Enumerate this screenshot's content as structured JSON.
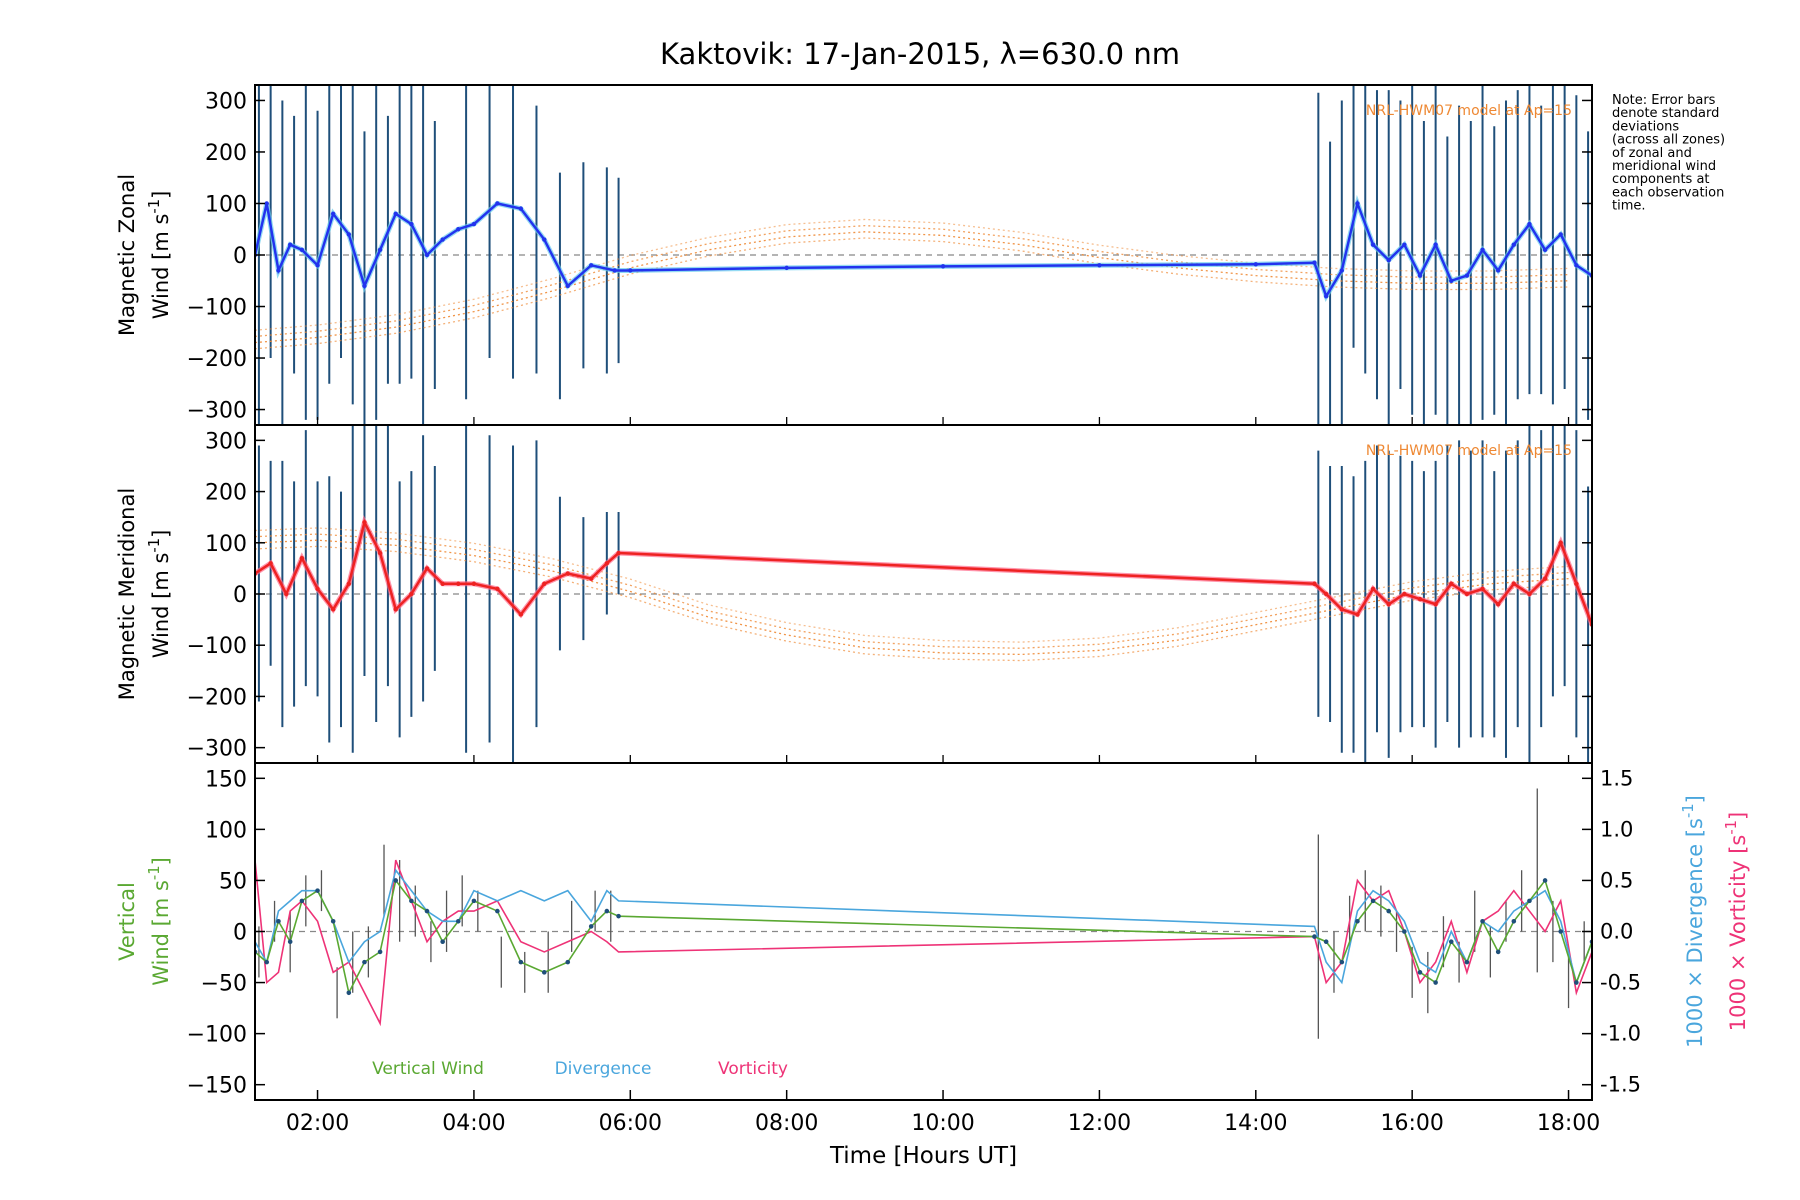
{
  "title": "Kaktovik: 17-Jan-2015, λ=630.0 nm",
  "note_lines": [
    "Note: Error bars",
    "denote standard",
    "deviations",
    "(across all zones)",
    "of zonal and",
    "meridional wind",
    "components at",
    "each observation",
    "time."
  ],
  "colors": {
    "zonal": "#2233ee",
    "zonal_light": "#66ccee",
    "meridional": "#ee2222",
    "meridional_light": "#ff6688",
    "model": "#ee8833",
    "vertical": "#5aa832",
    "divergence": "#4aa6dd",
    "vorticity": "#ee3377",
    "errorbar": "#1f4f7a",
    "axis": "#000000"
  },
  "chart_data": [
    {
      "type": "line",
      "panel": "zonal",
      "ylabel_lines": [
        "Magnetic Zonal",
        "Wind"
      ],
      "ylabel_unit": "[m s",
      "ylabel_unit_sup": "-1",
      "ylabel_unit_end": "]",
      "ylim": [
        -330,
        330
      ],
      "yticks": [
        -300,
        -200,
        -100,
        0,
        100,
        200,
        300
      ],
      "model_label": "NRL-HWM07 model at Ap=15",
      "series": [
        {
          "role": "observed",
          "x": [
            1.2,
            1.35,
            1.5,
            1.65,
            1.8,
            2.0,
            2.2,
            2.4,
            2.6,
            2.8,
            3.0,
            3.2,
            3.4,
            3.6,
            3.8,
            4.0,
            4.3,
            4.6,
            4.9,
            5.2,
            5.5,
            5.8,
            6.0,
            8.0,
            10.0,
            12.0,
            14.0,
            14.75,
            14.9,
            15.1,
            15.3,
            15.5,
            15.7,
            15.9,
            16.1,
            16.3,
            16.5,
            16.7,
            16.9,
            17.1,
            17.3,
            17.5,
            17.7,
            17.9,
            18.1,
            18.3
          ],
          "y": [
            0,
            100,
            -30,
            20,
            10,
            -20,
            80,
            40,
            -60,
            10,
            80,
            60,
            0,
            30,
            50,
            60,
            100,
            90,
            30,
            -60,
            -20,
            -30,
            -30,
            -25,
            -22,
            -20,
            -18,
            -15,
            -80,
            -30,
            100,
            20,
            -10,
            20,
            -40,
            20,
            -50,
            -40,
            10,
            -30,
            20,
            60,
            10,
            40,
            -20,
            -40
          ]
        },
        {
          "role": "model",
          "x": [
            1.2,
            2.0,
            3.0,
            4.0,
            5.0,
            6.0,
            7.0,
            8.0,
            9.0,
            10.0,
            11.0,
            12.0,
            13.0,
            14.0,
            15.0,
            16.0,
            17.0,
            18.0
          ],
          "y": [
            -170,
            -160,
            -140,
            -110,
            -70,
            -25,
            10,
            35,
            45,
            38,
            20,
            -5,
            -25,
            -40,
            -50,
            -55,
            -55,
            -50
          ]
        }
      ],
      "errorbars": {
        "x": [
          1.25,
          1.4,
          1.55,
          1.7,
          1.85,
          2.0,
          2.15,
          2.3,
          2.45,
          2.6,
          2.75,
          2.9,
          3.05,
          3.2,
          3.35,
          3.5,
          3.9,
          4.2,
          4.5,
          4.8,
          5.1,
          5.4,
          5.7,
          5.85,
          14.8,
          14.95,
          15.1,
          15.25,
          15.4,
          15.55,
          15.7,
          15.85,
          16.0,
          16.15,
          16.3,
          16.45,
          16.6,
          16.75,
          16.9,
          17.05,
          17.2,
          17.35,
          17.5,
          17.65,
          17.8,
          17.95,
          18.1,
          18.25
        ],
        "half": [
          330,
          300,
          330,
          250,
          330,
          300,
          330,
          280,
          330,
          300,
          330,
          260,
          330,
          300,
          330,
          260,
          330,
          300,
          330,
          260,
          220,
          200,
          200,
          180,
          330,
          300,
          330,
          280,
          330,
          300,
          330,
          280,
          330,
          300,
          330,
          280,
          330,
          300,
          330,
          280,
          330,
          300,
          330,
          280,
          330,
          300,
          330,
          280
        ]
      }
    },
    {
      "type": "line",
      "panel": "meridional",
      "ylabel_lines": [
        "Magnetic Meridional",
        "Wind"
      ],
      "ylabel_unit": "[m s",
      "ylabel_unit_sup": "-1",
      "ylabel_unit_end": "]",
      "ylim": [
        -330,
        330
      ],
      "yticks": [
        -300,
        -200,
        -100,
        0,
        100,
        200,
        300
      ],
      "model_label": "NRL-HWM07 model at Ap=15",
      "series": [
        {
          "role": "observed",
          "x": [
            1.2,
            1.4,
            1.6,
            1.8,
            2.0,
            2.2,
            2.4,
            2.6,
            2.8,
            3.0,
            3.2,
            3.4,
            3.6,
            3.8,
            4.0,
            4.3,
            4.6,
            4.9,
            5.2,
            5.5,
            5.7,
            5.85,
            14.75,
            14.9,
            15.1,
            15.3,
            15.5,
            15.7,
            15.9,
            16.1,
            16.3,
            16.5,
            16.7,
            16.9,
            17.1,
            17.3,
            17.5,
            17.7,
            17.9,
            18.1,
            18.3
          ],
          "y": [
            40,
            60,
            0,
            70,
            10,
            -30,
            20,
            140,
            80,
            -30,
            0,
            50,
            20,
            20,
            20,
            10,
            -40,
            20,
            40,
            30,
            60,
            80,
            20,
            0,
            -30,
            -40,
            10,
            -20,
            0,
            -10,
            -20,
            20,
            0,
            10,
            -20,
            20,
            0,
            30,
            100,
            20,
            -60
          ]
        },
        {
          "role": "model",
          "x": [
            1.2,
            2.0,
            3.0,
            4.0,
            5.0,
            6.0,
            7.0,
            8.0,
            9.0,
            10.0,
            11.0,
            12.0,
            13.0,
            14.0,
            15.0,
            16.0,
            17.0,
            18.0
          ],
          "y": [
            100,
            105,
            95,
            75,
            45,
            5,
            -45,
            -80,
            -105,
            -115,
            -118,
            -110,
            -90,
            -60,
            -30,
            0,
            20,
            30
          ]
        }
      ],
      "errorbars": {
        "x": [
          1.25,
          1.4,
          1.55,
          1.7,
          1.85,
          2.0,
          2.15,
          2.3,
          2.45,
          2.6,
          2.75,
          2.9,
          3.05,
          3.2,
          3.35,
          3.5,
          3.9,
          4.2,
          4.5,
          4.8,
          5.1,
          5.4,
          5.7,
          5.85,
          14.8,
          14.95,
          15.1,
          15.25,
          15.4,
          15.55,
          15.7,
          15.85,
          16.0,
          16.15,
          16.3,
          16.45,
          16.6,
          16.75,
          16.9,
          17.05,
          17.2,
          17.35,
          17.5,
          17.65,
          17.8,
          17.95,
          18.1,
          18.25
        ],
        "half": [
          250,
          200,
          260,
          220,
          250,
          210,
          260,
          230,
          330,
          300,
          330,
          260,
          250,
          240,
          260,
          200,
          330,
          300,
          330,
          280,
          150,
          120,
          100,
          80,
          260,
          250,
          280,
          270,
          300,
          280,
          300,
          270,
          260,
          250,
          280,
          270,
          300,
          280,
          290,
          260,
          300,
          280,
          330,
          290,
          300,
          280,
          300,
          270
        ]
      }
    },
    {
      "type": "line",
      "panel": "vertical",
      "ylabel_lines": [
        "Vertical",
        "Wind"
      ],
      "ylabel_unit": "[m s",
      "ylabel_unit_sup": "-1",
      "ylabel_unit_end": "]",
      "ylim": [
        -165,
        165
      ],
      "yticks": [
        -150,
        -100,
        -50,
        0,
        50,
        100,
        150
      ],
      "y2lim": [
        -1.65,
        1.65
      ],
      "y2ticks": [
        -1.5,
        -1.0,
        -0.5,
        0.0,
        0.5,
        1.0,
        1.5
      ],
      "y2label_div": "1000 × Divergence",
      "y2label_vort": "1000 × Vorticity",
      "y2label_unit": "[s",
      "y2label_unit_sup": "-1",
      "y2label_unit_end": "]",
      "legend": [
        "Vertical Wind",
        "Divergence",
        "Vorticity"
      ],
      "xlabel": "Time [Hours UT]",
      "xlim": [
        1.2,
        18.3
      ],
      "xticks": [
        2,
        4,
        6,
        8,
        10,
        12,
        14,
        16,
        18
      ],
      "xticklabels": [
        "02:00",
        "04:00",
        "06:00",
        "08:00",
        "10:00",
        "12:00",
        "14:00",
        "16:00",
        "18:00"
      ],
      "series": [
        {
          "name": "Vertical Wind",
          "x": [
            1.2,
            1.35,
            1.5,
            1.65,
            1.8,
            2.0,
            2.2,
            2.4,
            2.6,
            2.8,
            3.0,
            3.2,
            3.4,
            3.6,
            3.8,
            4.0,
            4.3,
            4.6,
            4.9,
            5.2,
            5.5,
            5.7,
            5.85,
            14.75,
            14.9,
            15.1,
            15.3,
            15.5,
            15.7,
            15.9,
            16.1,
            16.3,
            16.5,
            16.7,
            16.9,
            17.1,
            17.3,
            17.5,
            17.7,
            17.9,
            18.1,
            18.3
          ],
          "y": [
            -20,
            -30,
            10,
            -10,
            30,
            40,
            10,
            -60,
            -30,
            -20,
            50,
            30,
            20,
            -10,
            10,
            30,
            20,
            -30,
            -40,
            -30,
            5,
            20,
            15,
            -5,
            -10,
            -30,
            10,
            30,
            20,
            0,
            -40,
            -50,
            -10,
            -30,
            10,
            -20,
            10,
            30,
            50,
            0,
            -50,
            -10
          ]
        },
        {
          "name": "Divergence",
          "x": [
            1.2,
            1.35,
            1.5,
            1.65,
            1.8,
            2.0,
            2.2,
            2.4,
            2.6,
            2.8,
            3.0,
            3.2,
            3.4,
            3.6,
            3.8,
            4.0,
            4.3,
            4.6,
            4.9,
            5.2,
            5.5,
            5.7,
            5.85,
            14.75,
            14.9,
            15.1,
            15.3,
            15.5,
            15.7,
            15.9,
            16.1,
            16.3,
            16.5,
            16.7,
            16.9,
            17.1,
            17.3,
            17.5,
            17.7,
            17.9,
            18.1,
            18.3
          ],
          "y": [
            -0.1,
            -0.3,
            0.2,
            0.3,
            0.4,
            0.4,
            0.1,
            -0.3,
            -0.1,
            0.0,
            0.6,
            0.4,
            0.2,
            0.1,
            0.1,
            0.4,
            0.3,
            0.4,
            0.3,
            0.4,
            0.1,
            0.4,
            0.3,
            0.05,
            -0.3,
            -0.5,
            0.2,
            0.4,
            0.3,
            0.1,
            -0.3,
            -0.4,
            0.0,
            -0.3,
            0.1,
            0.0,
            0.2,
            0.3,
            0.4,
            0.1,
            -0.5,
            -0.1
          ]
        },
        {
          "name": "Vorticity",
          "x": [
            1.2,
            1.35,
            1.5,
            1.65,
            1.8,
            2.0,
            2.2,
            2.4,
            2.6,
            2.8,
            3.0,
            3.2,
            3.4,
            3.6,
            3.8,
            4.0,
            4.3,
            4.6,
            4.9,
            5.2,
            5.5,
            5.7,
            5.85,
            14.75,
            14.9,
            15.1,
            15.3,
            15.5,
            15.7,
            15.9,
            16.1,
            16.3,
            16.5,
            16.7,
            16.9,
            17.1,
            17.3,
            17.5,
            17.7,
            17.9,
            18.1,
            18.3
          ],
          "y": [
            0.7,
            -0.5,
            -0.4,
            0.2,
            0.3,
            0.1,
            -0.4,
            -0.3,
            -0.6,
            -0.9,
            0.7,
            0.3,
            -0.1,
            0.1,
            0.2,
            0.2,
            0.3,
            -0.1,
            -0.2,
            -0.1,
            0.0,
            -0.1,
            -0.2,
            -0.05,
            -0.5,
            -0.3,
            0.5,
            0.3,
            0.4,
            0.0,
            -0.5,
            -0.3,
            0.1,
            -0.4,
            0.1,
            0.2,
            0.4,
            0.2,
            0.0,
            0.3,
            -0.6,
            -0.2
          ]
        }
      ],
      "errorbars": {
        "x": [
          1.25,
          1.45,
          1.65,
          1.85,
          2.05,
          2.25,
          2.45,
          2.65,
          2.85,
          3.05,
          3.25,
          3.45,
          3.65,
          3.85,
          4.05,
          4.35,
          4.65,
          4.95,
          5.25,
          5.55,
          5.75,
          14.8,
          15.0,
          15.2,
          15.4,
          15.6,
          15.8,
          16.0,
          16.2,
          16.4,
          16.6,
          16.8,
          17.0,
          17.2,
          17.4,
          17.6,
          17.8,
          18.0,
          18.2
        ],
        "y": [
          -20,
          10,
          -10,
          30,
          40,
          -60,
          -30,
          -20,
          50,
          30,
          20,
          -10,
          10,
          30,
          20,
          -30,
          -40,
          -30,
          5,
          20,
          15,
          -5,
          -30,
          10,
          30,
          20,
          0,
          -40,
          -50,
          -10,
          -30,
          10,
          -20,
          10,
          30,
          50,
          0,
          -50,
          -10
        ],
        "half": [
          25,
          20,
          30,
          25,
          20,
          25,
          30,
          25,
          35,
          40,
          25,
          20,
          30,
          25,
          20,
          25,
          20,
          30,
          25,
          20,
          25,
          100,
          30,
          25,
          30,
          25,
          20,
          25,
          30,
          25,
          20,
          30,
          25,
          20,
          30,
          90,
          30,
          25,
          20
        ]
      }
    }
  ]
}
